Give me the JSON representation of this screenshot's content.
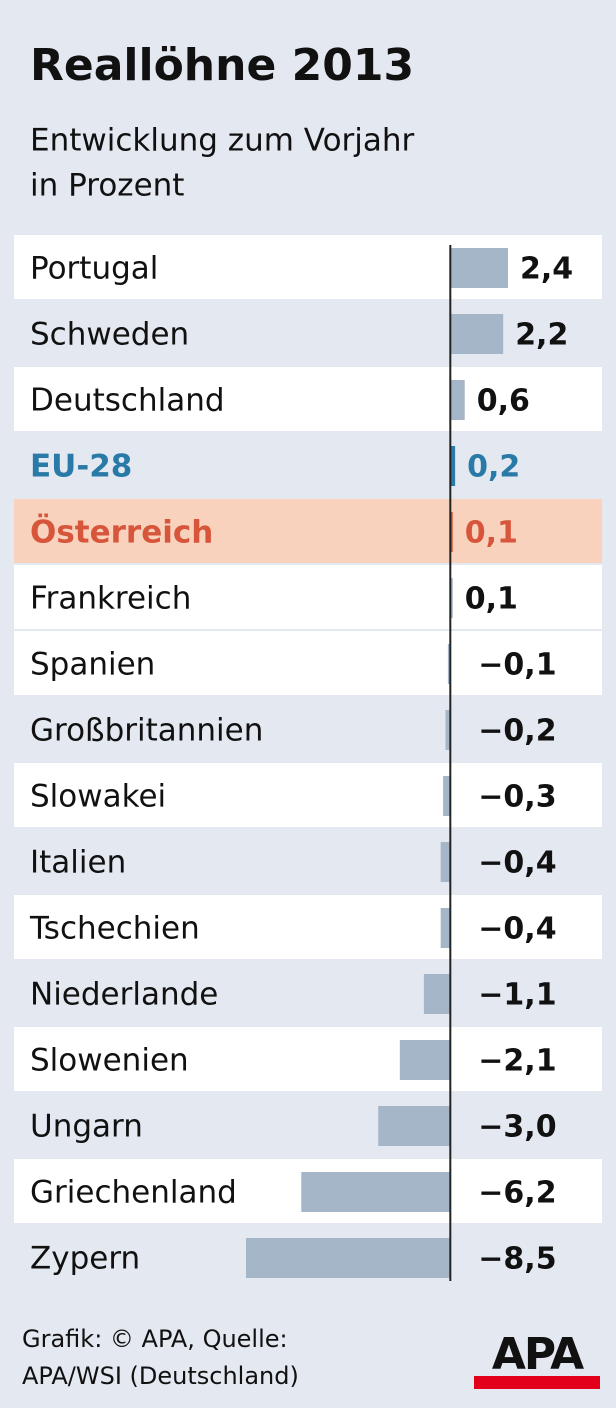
{
  "chart_data": {
    "type": "hbar",
    "title": "Reallöhne 2013",
    "subtitle": [
      "Entwicklung zum Vorjahr",
      "in Prozent"
    ],
    "categories": [
      "Portugal",
      "Schweden",
      "Deutschland",
      "EU-28",
      "Österreich",
      "Frankreich",
      "Spanien",
      "Großbritannien",
      "Slowakei",
      "Italien",
      "Tschechien",
      "Niederlande",
      "Slowenien",
      "Ungarn",
      "Griechenland",
      "Zypern"
    ],
    "values": [
      2.4,
      2.2,
      0.6,
      0.2,
      0.1,
      0.1,
      -0.1,
      -0.2,
      -0.3,
      -0.4,
      -0.4,
      -1.1,
      -2.1,
      -3.0,
      -6.2,
      -8.5
    ],
    "value_labels": [
      "2,4",
      "2,2",
      "0,6",
      "0,2",
      "0,1",
      "0,1",
      "−0,1",
      "−0,2",
      "−0,3",
      "−0,4",
      "−0,4",
      "−1,1",
      "−2,1",
      "−3,0",
      "−6,2",
      "−8,5"
    ],
    "xlim": [
      -8.5,
      2.4
    ],
    "color": "#a5b6c8",
    "text_colors": [
      "#111111",
      "#111111",
      "#111111",
      "#2a7aa8",
      "#d7553a",
      "#111111",
      "#111111",
      "#111111",
      "#111111",
      "#111111",
      "#111111",
      "#111111",
      "#111111",
      "#111111",
      "#111111",
      "#111111"
    ],
    "row_colors": [
      "#ffffff",
      "#e4e8f1",
      "#ffffff",
      "#e4e8f1",
      "#f8d2bd",
      "#ffffff",
      "#ffffff",
      "#e4e8f1",
      "#ffffff",
      "#e4e8f1",
      "#ffffff",
      "#e4e8f1",
      "#ffffff",
      "#e4e8f1",
      "#ffffff",
      "#e4e8f1"
    ],
    "source": [
      "Grafik: © APA, Quelle:",
      "APA/WSI (Deutschland)"
    ],
    "logo": "APA"
  }
}
